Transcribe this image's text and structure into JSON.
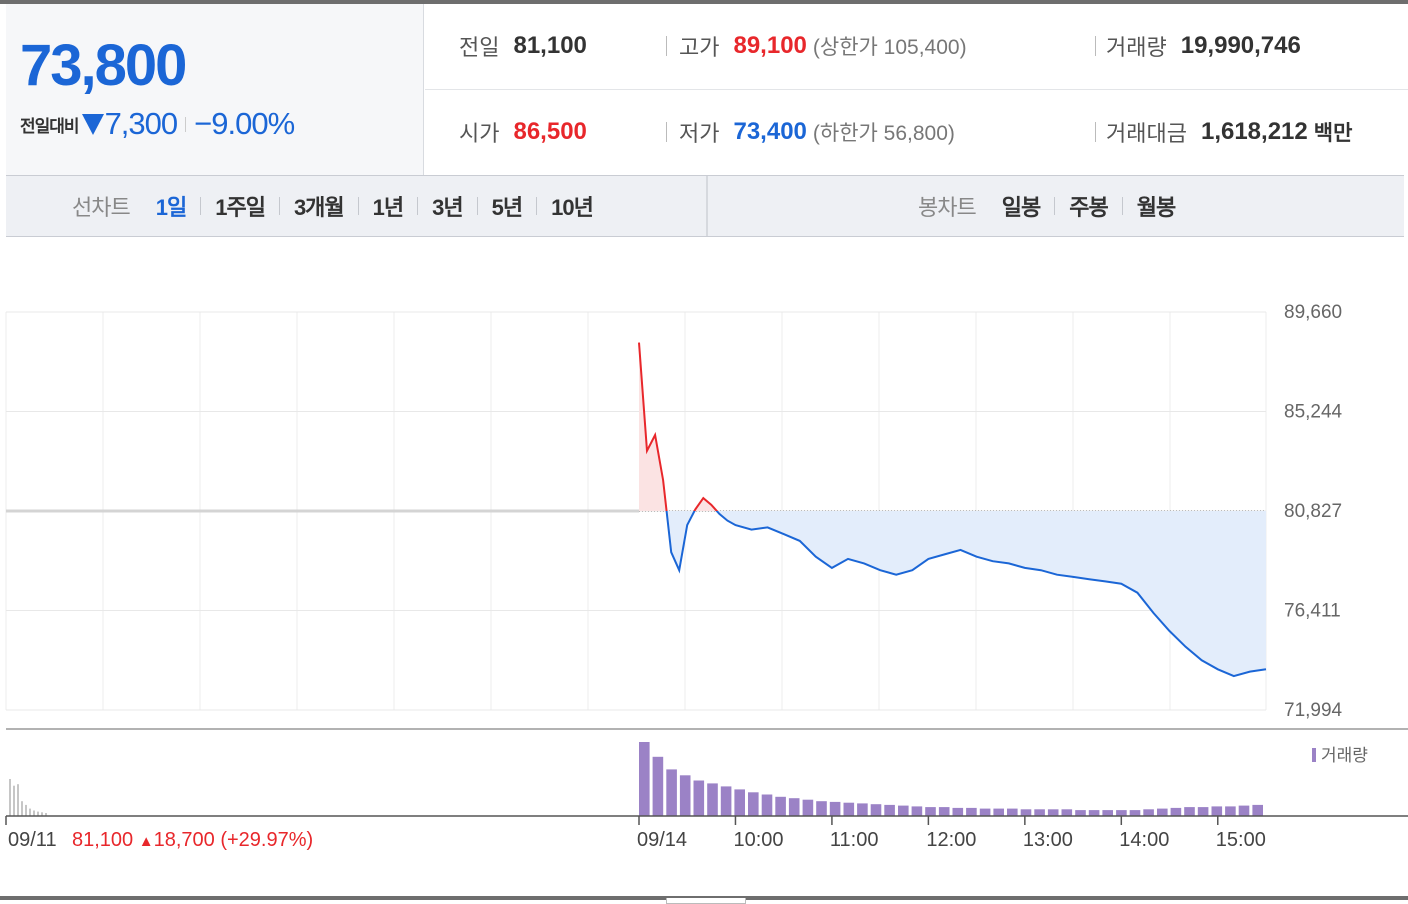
{
  "quote": {
    "price": "73,800",
    "change_label": "전일대비",
    "change_direction": "down",
    "change_value": "7,300",
    "change_rate": "−9.00%",
    "colors": {
      "up": "#e8272b",
      "down": "#1b66d6"
    }
  },
  "stats": {
    "prev_close": {
      "label": "전일",
      "value": "81,100"
    },
    "high": {
      "label": "고가",
      "value": "89,100",
      "extra": "(상한가 105,400)"
    },
    "volume": {
      "label": "거래량",
      "value": "19,990,746"
    },
    "open": {
      "label": "시가",
      "value": "86,500"
    },
    "low": {
      "label": "저가",
      "value": "73,400",
      "extra": "(하한가 56,800)"
    },
    "amount": {
      "label": "거래대금",
      "value": "1,618,212",
      "unit": "백만"
    }
  },
  "tabs": {
    "line_title": "선차트",
    "line_tabs": [
      "1일",
      "1주일",
      "3개월",
      "1년",
      "3년",
      "5년",
      "10년"
    ],
    "active_line_tab": "1일",
    "candle_title": "봉차트",
    "candle_tabs": [
      "일봉",
      "주봉",
      "월봉"
    ]
  },
  "chart_data": {
    "type": "line",
    "title": "",
    "xlabel": "",
    "ylabel": "",
    "ylim": [
      71994,
      89660
    ],
    "y_ticks": [
      "89,660",
      "85,244",
      "80,827",
      "76,411",
      "71,994"
    ],
    "x_ticks": [
      "09/11",
      "09/14",
      "10:00",
      "11:00",
      "12:00",
      "13:00",
      "14:00",
      "15:00"
    ],
    "reference_price": 80827,
    "prev_day_summary": {
      "date": "09/11",
      "close": "81,100",
      "change": "18,700",
      "rate": "(+29.97%)"
    },
    "legend": {
      "entries": [
        "거래량"
      ],
      "placement": "top-right"
    },
    "grid": true,
    "series": [
      {
        "kind": "price",
        "x": [
          "09:00",
          "09:05",
          "09:10",
          "09:15",
          "09:20",
          "09:25",
          "09:30",
          "09:35",
          "09:40",
          "09:45",
          "09:50",
          "09:55",
          "10:00",
          "10:10",
          "10:20",
          "10:30",
          "10:40",
          "10:50",
          "11:00",
          "11:10",
          "11:20",
          "11:30",
          "11:40",
          "11:50",
          "12:00",
          "12:10",
          "12:20",
          "12:30",
          "12:40",
          "12:50",
          "13:00",
          "13:10",
          "13:20",
          "13:30",
          "13:40",
          "13:50",
          "14:00",
          "14:10",
          "14:20",
          "14:30",
          "14:40",
          "14:50",
          "15:00",
          "15:10",
          "15:20",
          "15:30"
        ],
        "values": [
          88300,
          83500,
          84200,
          82200,
          79000,
          78200,
          80200,
          80900,
          81400,
          81100,
          80700,
          80400,
          80200,
          80000,
          80100,
          79800,
          79500,
          78800,
          78300,
          78700,
          78500,
          78200,
          78000,
          78200,
          78700,
          78900,
          79100,
          78800,
          78600,
          78500,
          78300,
          78200,
          78000,
          77900,
          77800,
          77700,
          77600,
          77200,
          76300,
          75500,
          74800,
          74200,
          73800,
          73500,
          73700,
          73800
        ]
      },
      {
        "kind": "volume",
        "name": "거래량",
        "values": [
          100,
          80,
          63,
          55,
          48,
          44,
          40,
          36,
          32,
          29,
          26,
          24,
          22,
          20,
          19,
          18,
          17,
          16,
          15,
          14,
          13,
          12,
          12,
          11,
          11,
          10,
          10,
          10,
          9,
          9,
          9,
          9,
          8,
          8,
          8,
          8,
          8,
          9,
          10,
          11,
          12,
          12,
          13,
          13,
          14,
          15
        ]
      }
    ],
    "prev_volume": [
      100,
      82,
      86,
      40,
      30,
      20,
      15,
      12,
      10,
      8
    ]
  }
}
